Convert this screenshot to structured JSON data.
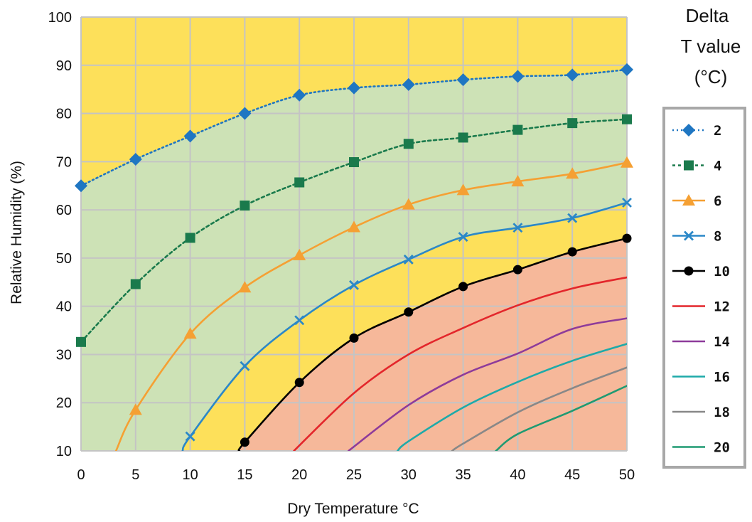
{
  "chart_data": {
    "type": "line",
    "title": "",
    "xlabel": "Dry Temperature °C",
    "ylabel": "Relative Humidity (%)",
    "xlim": [
      0,
      50
    ],
    "ylim": [
      10,
      100
    ],
    "x_ticks": [
      0,
      5,
      10,
      15,
      20,
      25,
      30,
      35,
      40,
      45,
      50
    ],
    "y_ticks": [
      10,
      20,
      30,
      40,
      50,
      60,
      70,
      80,
      90,
      100
    ],
    "grid": true,
    "legend_title": [
      "Delta",
      "T value",
      "(°C)"
    ],
    "legend_position": "right",
    "zone_colors": {
      "upper": "#fde05a",
      "middle": "#cde2b6",
      "mid_lower": "#fde05a",
      "lower": "#f6b89a"
    },
    "series": [
      {
        "name": "2",
        "color": "#1f76c2",
        "marker": "diamond",
        "dash": "dotted",
        "x": [
          0,
          5,
          10,
          15,
          20,
          25,
          30,
          35,
          40,
          45,
          50
        ],
        "y": [
          65,
          70.5,
          75.3,
          80,
          83.8,
          85.3,
          86,
          87,
          87.7,
          88,
          89.1
        ]
      },
      {
        "name": "4",
        "color": "#1a7a4c",
        "marker": "square",
        "dash": "dashed",
        "x": [
          0,
          5,
          10,
          15,
          20,
          25,
          30,
          35,
          40,
          45,
          50
        ],
        "y": [
          32.6,
          44.6,
          54.2,
          60.9,
          65.7,
          69.9,
          73.7,
          75,
          76.6,
          78,
          78.8
        ]
      },
      {
        "name": "6",
        "color": "#f5a033",
        "marker": "triangle",
        "dash": "solid",
        "x": [
          3.2,
          5,
          10,
          15,
          20,
          25,
          30,
          35,
          40,
          45,
          50
        ],
        "y": [
          10,
          18.5,
          34.3,
          43.9,
          50.6,
          56.4,
          61.1,
          64.1,
          65.9,
          67.5,
          69.8
        ]
      },
      {
        "name": "8",
        "color": "#2b88c8",
        "marker": "x",
        "dash": "solid",
        "x": [
          9.3,
          10,
          15,
          20,
          25,
          30,
          35,
          40,
          45,
          50
        ],
        "y": [
          10,
          13,
          27.6,
          37.1,
          44.4,
          49.7,
          54.4,
          56.3,
          58.3,
          61.5
        ]
      },
      {
        "name": "10",
        "color": "#000000",
        "marker": "circle",
        "dash": "solid",
        "x": [
          14.5,
          15,
          20,
          25,
          30,
          35,
          40,
          45,
          50
        ],
        "y": [
          10,
          11.8,
          24.2,
          33.4,
          38.8,
          44.1,
          47.6,
          51.3,
          54.1
        ]
      },
      {
        "name": "12",
        "color": "#e3262b",
        "marker": "none",
        "dash": "solid",
        "x": [
          19.5,
          25,
          30,
          35,
          40,
          45,
          50
        ],
        "y": [
          10,
          22,
          30,
          35.5,
          40.2,
          43.7,
          46
        ]
      },
      {
        "name": "14",
        "color": "#8e3b9a",
        "marker": "none",
        "dash": "solid",
        "x": [
          24.5,
          30,
          35,
          40,
          45,
          50
        ],
        "y": [
          10,
          19.5,
          25.8,
          30.2,
          35.3,
          37.5
        ]
      },
      {
        "name": "16",
        "color": "#1eaaa9",
        "marker": "none",
        "dash": "solid",
        "x": [
          29,
          30,
          35,
          40,
          45,
          50
        ],
        "y": [
          10,
          12,
          19,
          24.3,
          28.7,
          32.2
        ]
      },
      {
        "name": "18",
        "color": "#888888",
        "marker": "none",
        "dash": "solid",
        "x": [
          34,
          35,
          40,
          45,
          50
        ],
        "y": [
          10,
          11.5,
          18,
          23,
          27.3
        ]
      },
      {
        "name": "20",
        "color": "#1f9a72",
        "marker": "none",
        "dash": "solid",
        "x": [
          38,
          40,
          45,
          50
        ],
        "y": [
          10,
          13.5,
          18.3,
          23.5
        ]
      }
    ]
  }
}
